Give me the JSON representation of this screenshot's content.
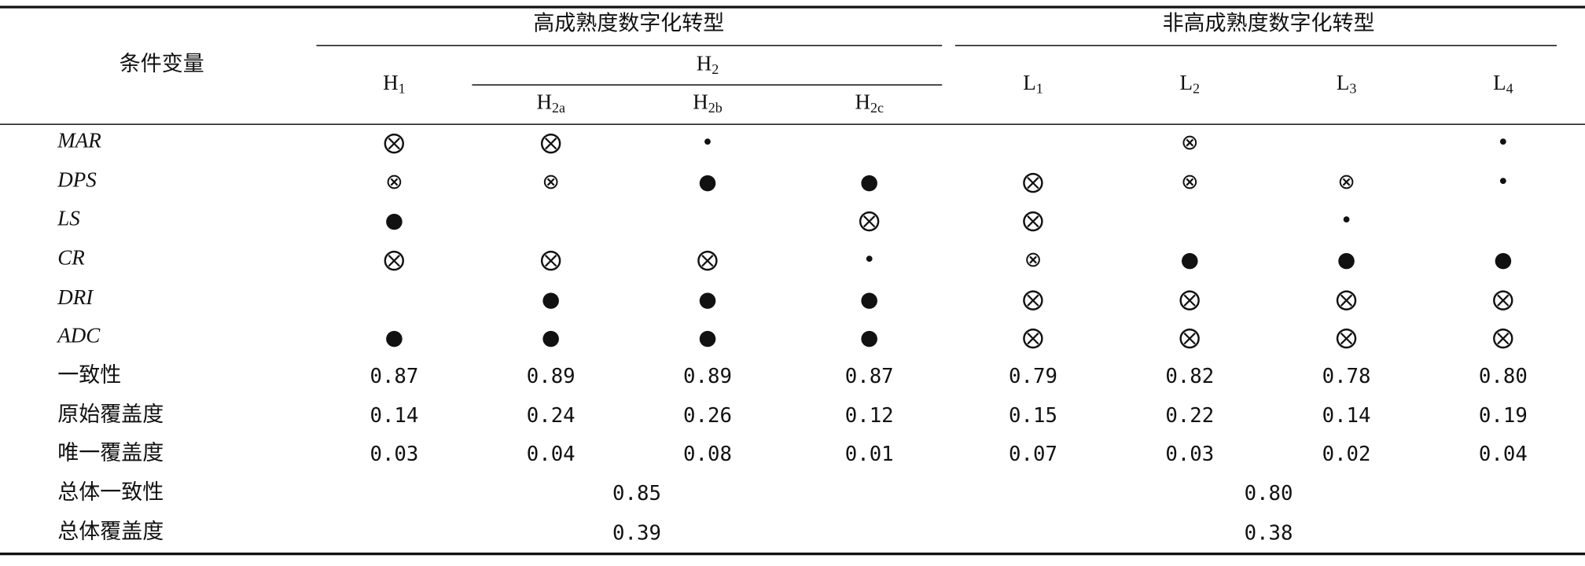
{
  "header": {
    "stub": "条件变量",
    "groups": [
      "高成熟度数字化转型",
      "非高成熟度数字化转型"
    ],
    "h2": {
      "main": "H",
      "sub": "2"
    },
    "columns": [
      {
        "main": "H",
        "sub": "1"
      },
      {
        "main": "H",
        "sub": "2a"
      },
      {
        "main": "H",
        "sub": "2b"
      },
      {
        "main": "H",
        "sub": "2c"
      },
      {
        "main": "L",
        "sub": "1"
      },
      {
        "main": "L",
        "sub": "2"
      },
      {
        "main": "L",
        "sub": "3"
      },
      {
        "main": "L",
        "sub": "4"
      }
    ]
  },
  "table": {
    "rows": [
      {
        "label": "MAR",
        "cells": [
          "⨂",
          "⨂",
          "•",
          null,
          null,
          "⊗",
          null,
          "•"
        ]
      },
      {
        "label": "DPS",
        "cells": [
          "⊗",
          "⊗",
          "●",
          "●",
          "⨂",
          "⊗",
          "⊗",
          "•"
        ]
      },
      {
        "label": "LS",
        "cells": [
          "●",
          null,
          null,
          "⨂",
          "⨂",
          null,
          "•",
          null
        ]
      },
      {
        "label": "CR",
        "cells": [
          "⨂",
          "⨂",
          "⨂",
          "•",
          "⊗",
          "●",
          "●",
          "●"
        ]
      },
      {
        "label": "DRI",
        "cells": [
          null,
          "●",
          "●",
          "●",
          "⨂",
          "⨂",
          "⨂",
          "⨂"
        ]
      },
      {
        "label": "ADC",
        "cells": [
          "●",
          "●",
          "●",
          "●",
          "⨂",
          "⨂",
          "⨂",
          "⨂"
        ]
      },
      {
        "label": "一致性",
        "cells": [
          "0.87",
          "0.89",
          "0.89",
          "0.87",
          "0.79",
          "0.82",
          "0.78",
          "0.80"
        ]
      },
      {
        "label": "原始覆盖度",
        "cells": [
          "0.14",
          "0.24",
          "0.26",
          "0.12",
          "0.15",
          "0.22",
          "0.14",
          "0.19"
        ]
      },
      {
        "label": "唯一覆盖度",
        "cells": [
          "0.03",
          "0.04",
          "0.08",
          "0.01",
          "0.07",
          "0.03",
          "0.02",
          "0.04"
        ]
      }
    ],
    "summary": [
      {
        "label": "总体一致性",
        "values": [
          "0.85",
          "0.80"
        ]
      },
      {
        "label": "总体覆盖度",
        "values": [
          "0.39",
          "0.38"
        ]
      }
    ]
  }
}
